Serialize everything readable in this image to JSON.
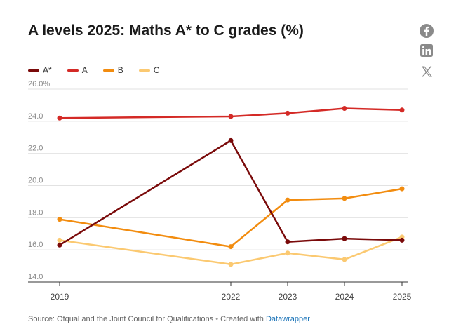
{
  "header": {
    "title": "A levels 2025: Maths A* to C grades (%)"
  },
  "social": {
    "facebook_icon": "facebook-icon",
    "linkedin_icon": "linkedin-icon",
    "x_icon": "x-icon",
    "icon_color": "#888888"
  },
  "chart_data": {
    "type": "line",
    "title": "A levels 2025: Maths A* to C grades (%)",
    "xlabel": "",
    "ylabel": "",
    "x": [
      2019,
      2022,
      2023,
      2024,
      2025
    ],
    "x_tick_labels": [
      "2019",
      "2022",
      "2023",
      "2024",
      "2025"
    ],
    "y_ticks": [
      14.0,
      16.0,
      18.0,
      20.0,
      22.0,
      24.0,
      26.0
    ],
    "y_tick_labels": [
      "14.0",
      "16.0",
      "18.0",
      "20.0",
      "22.0",
      "24.0",
      "26.0%"
    ],
    "ylim": [
      14.0,
      26.0
    ],
    "xlim": [
      2019,
      2025
    ],
    "grid": "horizontal",
    "legend_position": "top-left",
    "series": [
      {
        "name": "A*",
        "color": "#7a0a0a",
        "values": [
          16.3,
          22.8,
          16.5,
          16.7,
          16.6
        ]
      },
      {
        "name": "A",
        "color": "#d42a26",
        "values": [
          24.2,
          24.3,
          24.5,
          24.8,
          24.7
        ]
      },
      {
        "name": "B",
        "color": "#f28c0f",
        "values": [
          17.9,
          16.2,
          19.1,
          19.2,
          19.8
        ]
      },
      {
        "name": "C",
        "color": "#fbc971",
        "values": [
          16.6,
          15.1,
          15.8,
          15.4,
          16.8
        ]
      }
    ]
  },
  "footer": {
    "source_text": "Source: Ofqual and the Joint Council for Qualifications",
    "separator": "•",
    "created_with": "Created with",
    "link_text": "Datawrapper"
  }
}
